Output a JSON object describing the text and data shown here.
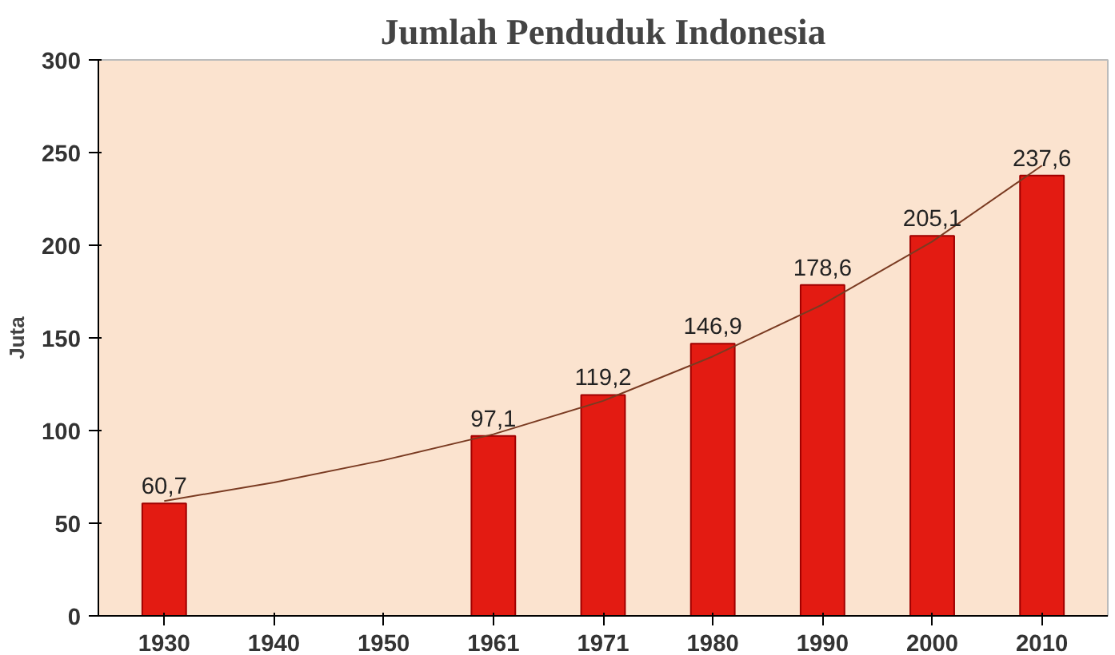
{
  "chart_data": {
    "type": "bar",
    "title": "Jumlah Penduduk Indonesia",
    "ylabel": "Juta",
    "categories": [
      "1930",
      "1940",
      "1950",
      "1961",
      "1971",
      "1980",
      "1990",
      "2000",
      "2010"
    ],
    "series": [
      {
        "color": "#e31b12",
        "values": [
          60.7,
          null,
          null,
          97.1,
          119.2,
          146.9,
          178.6,
          205.1,
          237.6
        ],
        "value_labels": [
          "60,7",
          null,
          null,
          "97,1",
          "119,2",
          "146,9",
          "178,6",
          "205,1",
          "237,6"
        ]
      },
      {
        "type": "line",
        "color": "#7a3b22",
        "values": [
          62,
          72,
          84,
          98,
          116,
          140,
          168,
          202,
          243
        ]
      }
    ],
    "ylim": [
      0,
      300
    ],
    "yticks": [
      0,
      50,
      100,
      150,
      200,
      250,
      300
    ],
    "grid": false
  }
}
